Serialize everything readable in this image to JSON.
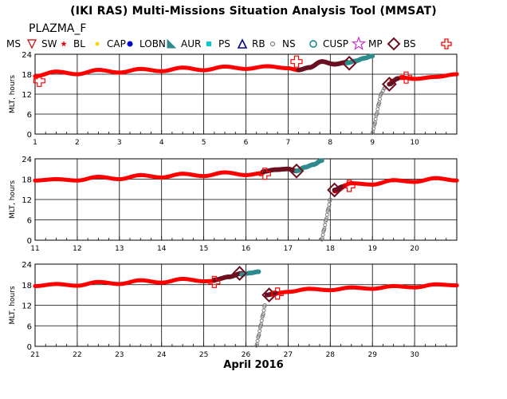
{
  "title": "(IKI RAS) Multi-Missions Situation Analysis Tool (MMSAT)",
  "mission": "PLAZMA_F",
  "x_month_label": "April 2016",
  "legend": [
    {
      "label": "MS",
      "icon": "none",
      "color": "#000000"
    },
    {
      "label": "SW",
      "icon": "triangle-down-icon",
      "color": "#cc0000"
    },
    {
      "label": "BL",
      "icon": "star-small-icon",
      "color": "#dd0000"
    },
    {
      "label": "CAP",
      "icon": "dot-icon",
      "color": "#ffd700"
    },
    {
      "label": "LOBN",
      "icon": "hexagon-icon",
      "color": "#0000cc"
    },
    {
      "label": "AUR",
      "icon": "triangle-right-icon",
      "color": "#2e8b8b"
    },
    {
      "label": "PS",
      "icon": "square-icon",
      "color": "#00cccc"
    },
    {
      "label": "RB",
      "icon": "triangle-up-icon",
      "color": "#000099"
    },
    {
      "label": "NS",
      "icon": "circle-small-icon",
      "color": "#808080"
    },
    {
      "label": "CUSP",
      "icon": "circle-icon",
      "color": "#008080"
    },
    {
      "label": "MP",
      "icon": "star-icon",
      "color": "#cc33cc"
    },
    {
      "label": "BS",
      "icon": "diamond-icon",
      "color": "#6b1020"
    },
    {
      "label": "",
      "icon": "cross-icon",
      "color": "#ff0000"
    }
  ],
  "chart_data": [
    {
      "type": "scatter",
      "ylabel": "MLT, hours",
      "xlabel": "",
      "xlim": [
        1,
        11
      ],
      "ylim": [
        0,
        24
      ],
      "xticks": [
        "1",
        "2",
        "3",
        "4",
        "5",
        "6",
        "7",
        "8",
        "9",
        "10"
      ],
      "yticks": [
        "0",
        "6",
        "12",
        "18",
        "24"
      ],
      "series": [
        {
          "region": "SW",
          "color": "#ff0000",
          "points": [
            [
              1.0,
              17.4
            ],
            [
              1.5,
              18.8
            ],
            [
              2.0,
              18.0
            ],
            [
              2.5,
              19.3
            ],
            [
              3.0,
              18.5
            ],
            [
              3.5,
              19.6
            ],
            [
              4.0,
              18.9
            ],
            [
              4.5,
              20.0
            ],
            [
              5.0,
              19.2
            ],
            [
              5.5,
              20.3
            ],
            [
              6.0,
              19.6
            ],
            [
              6.5,
              20.4
            ],
            [
              7.0,
              19.8
            ],
            [
              7.25,
              19.2
            ],
            [
              9.45,
              16.0
            ],
            [
              9.7,
              17.0
            ],
            [
              10.0,
              16.6
            ],
            [
              10.5,
              17.2
            ],
            [
              11.0,
              18.0
            ]
          ]
        },
        {
          "region": "MS",
          "color": "#6b1020",
          "points": [
            [
              7.25,
              19.3
            ],
            [
              7.5,
              20.0
            ],
            [
              7.8,
              21.8
            ],
            [
              8.1,
              21.0
            ],
            [
              8.4,
              21.6
            ],
            [
              9.4,
              15.0
            ],
            [
              9.6,
              16.7
            ]
          ]
        },
        {
          "region": "PS",
          "color": "#2e8b8b",
          "points": [
            [
              8.4,
              21.4
            ],
            [
              8.6,
              22.0
            ],
            [
              8.8,
              22.8
            ],
            [
              9.0,
              23.5
            ]
          ]
        },
        {
          "region": "NS",
          "color": "#808080",
          "points": [
            [
              9.0,
              0.3
            ],
            [
              9.05,
              3.0
            ],
            [
              9.1,
              6.0
            ],
            [
              9.15,
              9.0
            ],
            [
              9.2,
              12.0
            ],
            [
              9.3,
              14.0
            ]
          ]
        }
      ],
      "crossings": [
        {
          "type": "BS",
          "x": 8.45,
          "y": 21.3
        },
        {
          "type": "BS",
          "x": 9.4,
          "y": 15.0
        },
        {
          "type": "cross",
          "x": 1.1,
          "y": 16.0
        },
        {
          "type": "cross",
          "x": 7.2,
          "y": 21.8
        },
        {
          "type": "cross",
          "x": 9.8,
          "y": 17.0
        }
      ]
    },
    {
      "type": "scatter",
      "ylabel": "MLT, hours",
      "xlabel": "",
      "xlim": [
        11,
        21
      ],
      "ylim": [
        0,
        24
      ],
      "xticks": [
        "11",
        "12",
        "13",
        "14",
        "15",
        "16",
        "17",
        "18",
        "19",
        "20"
      ],
      "yticks": [
        "0",
        "6",
        "12",
        "18",
        "24"
      ],
      "series": [
        {
          "region": "SW",
          "color": "#ff0000",
          "points": [
            [
              11.0,
              17.6
            ],
            [
              11.5,
              18.0
            ],
            [
              12.0,
              17.6
            ],
            [
              12.5,
              18.7
            ],
            [
              13.0,
              18.0
            ],
            [
              13.5,
              19.2
            ],
            [
              14.0,
              18.5
            ],
            [
              14.5,
              19.6
            ],
            [
              15.0,
              18.9
            ],
            [
              15.5,
              20.0
            ],
            [
              16.0,
              19.2
            ],
            [
              16.4,
              19.8
            ],
            [
              18.1,
              14.4
            ],
            [
              18.5,
              16.8
            ],
            [
              19.0,
              16.4
            ],
            [
              19.5,
              17.7
            ],
            [
              20.0,
              17.2
            ],
            [
              20.5,
              18.3
            ],
            [
              21.0,
              17.6
            ]
          ]
        },
        {
          "region": "MS",
          "color": "#6b1020",
          "points": [
            [
              16.4,
              20.2
            ],
            [
              16.7,
              20.8
            ],
            [
              17.0,
              21.0
            ],
            [
              17.2,
              20.4
            ],
            [
              18.1,
              14.8
            ],
            [
              18.3,
              15.8
            ]
          ]
        },
        {
          "region": "PS",
          "color": "#2e8b8b",
          "points": [
            [
              17.2,
              20.4
            ],
            [
              17.4,
              21.5
            ],
            [
              17.6,
              22.3
            ],
            [
              17.8,
              23.5
            ]
          ]
        },
        {
          "region": "NS",
          "color": "#808080",
          "points": [
            [
              17.8,
              0.2
            ],
            [
              17.85,
              3.0
            ],
            [
              17.9,
              6.0
            ],
            [
              17.95,
              9.0
            ],
            [
              18.0,
              12.0
            ]
          ]
        }
      ],
      "crossings": [
        {
          "type": "BS",
          "x": 17.2,
          "y": 20.4
        },
        {
          "type": "BS",
          "x": 18.1,
          "y": 14.8
        },
        {
          "type": "cross",
          "x": 16.45,
          "y": 19.6
        },
        {
          "type": "cross",
          "x": 18.45,
          "y": 16.0
        }
      ]
    },
    {
      "type": "scatter",
      "ylabel": "MLT, hours",
      "xlabel": "",
      "xlim": [
        21,
        31
      ],
      "ylim": [
        0,
        24
      ],
      "xticks": [
        "21",
        "22",
        "23",
        "24",
        "25",
        "26",
        "27",
        "28",
        "29",
        "30"
      ],
      "yticks": [
        "0",
        "6",
        "12",
        "18",
        "24"
      ],
      "series": [
        {
          "region": "SW",
          "color": "#ff0000",
          "points": [
            [
              21.0,
              17.6
            ],
            [
              21.5,
              18.2
            ],
            [
              22.0,
              17.7
            ],
            [
              22.5,
              18.8
            ],
            [
              23.0,
              18.2
            ],
            [
              23.5,
              19.3
            ],
            [
              24.0,
              18.6
            ],
            [
              24.5,
              19.7
            ],
            [
              25.0,
              19.0
            ],
            [
              25.25,
              19.1
            ],
            [
              26.5,
              15.0
            ],
            [
              27.0,
              15.9
            ],
            [
              27.5,
              16.8
            ],
            [
              28.0,
              16.4
            ],
            [
              28.5,
              17.2
            ],
            [
              29.0,
              16.8
            ],
            [
              29.5,
              17.6
            ],
            [
              30.0,
              17.2
            ],
            [
              30.5,
              18.1
            ],
            [
              31.0,
              17.8
            ]
          ]
        },
        {
          "region": "MS",
          "color": "#6b1020",
          "points": [
            [
              25.25,
              19.4
            ],
            [
              25.6,
              20.3
            ],
            [
              25.9,
              21.3
            ],
            [
              26.5,
              15.0
            ],
            [
              26.7,
              15.6
            ]
          ]
        },
        {
          "region": "PS",
          "color": "#2e8b8b",
          "points": [
            [
              25.9,
              21.0
            ],
            [
              26.1,
              21.4
            ],
            [
              26.3,
              21.8
            ]
          ]
        },
        {
          "region": "NS",
          "color": "#808080",
          "points": [
            [
              26.25,
              0.2
            ],
            [
              26.3,
              3.0
            ],
            [
              26.35,
              6.0
            ],
            [
              26.4,
              9.0
            ],
            [
              26.45,
              12.0
            ]
          ]
        }
      ],
      "crossings": [
        {
          "type": "BS",
          "x": 25.85,
          "y": 21.3
        },
        {
          "type": "BS",
          "x": 26.55,
          "y": 15.0
        },
        {
          "type": "cross",
          "x": 25.25,
          "y": 18.8
        },
        {
          "type": "cross",
          "x": 26.75,
          "y": 15.4
        }
      ]
    }
  ]
}
